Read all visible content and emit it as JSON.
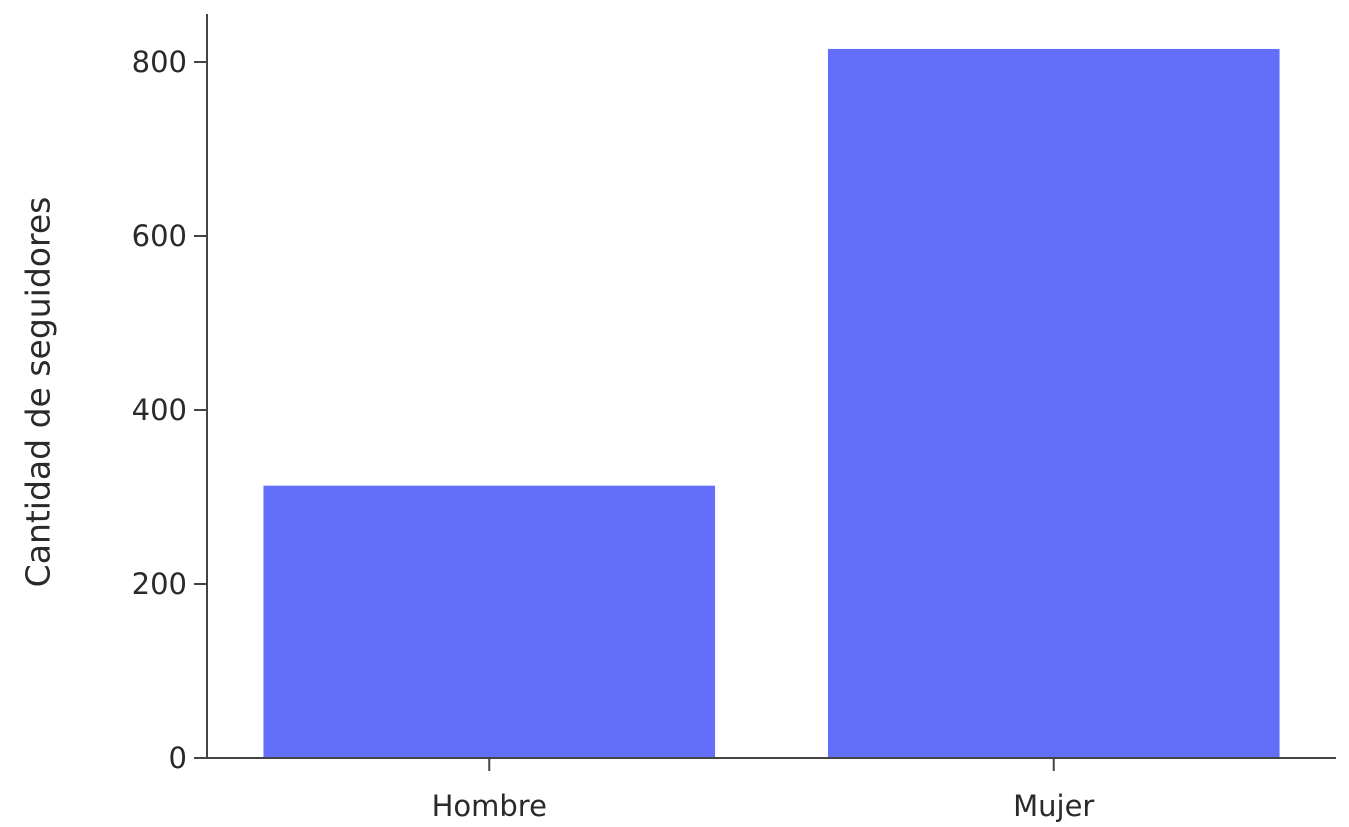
{
  "chart_data": {
    "type": "bar",
    "title": "",
    "xlabel": "",
    "ylabel": "Cantidad de seguidores",
    "categories": [
      "Hombre",
      "Mujer"
    ],
    "values": [
      313,
      815
    ],
    "ylim": [
      0,
      860
    ],
    "yticks": [
      0,
      200,
      400,
      600,
      800
    ],
    "ytick_labels": [
      "0",
      "200",
      "400",
      "600",
      "800"
    ],
    "grid": false,
    "legend": "none",
    "bar_color": "#636efa",
    "axis_color": "#444444"
  }
}
